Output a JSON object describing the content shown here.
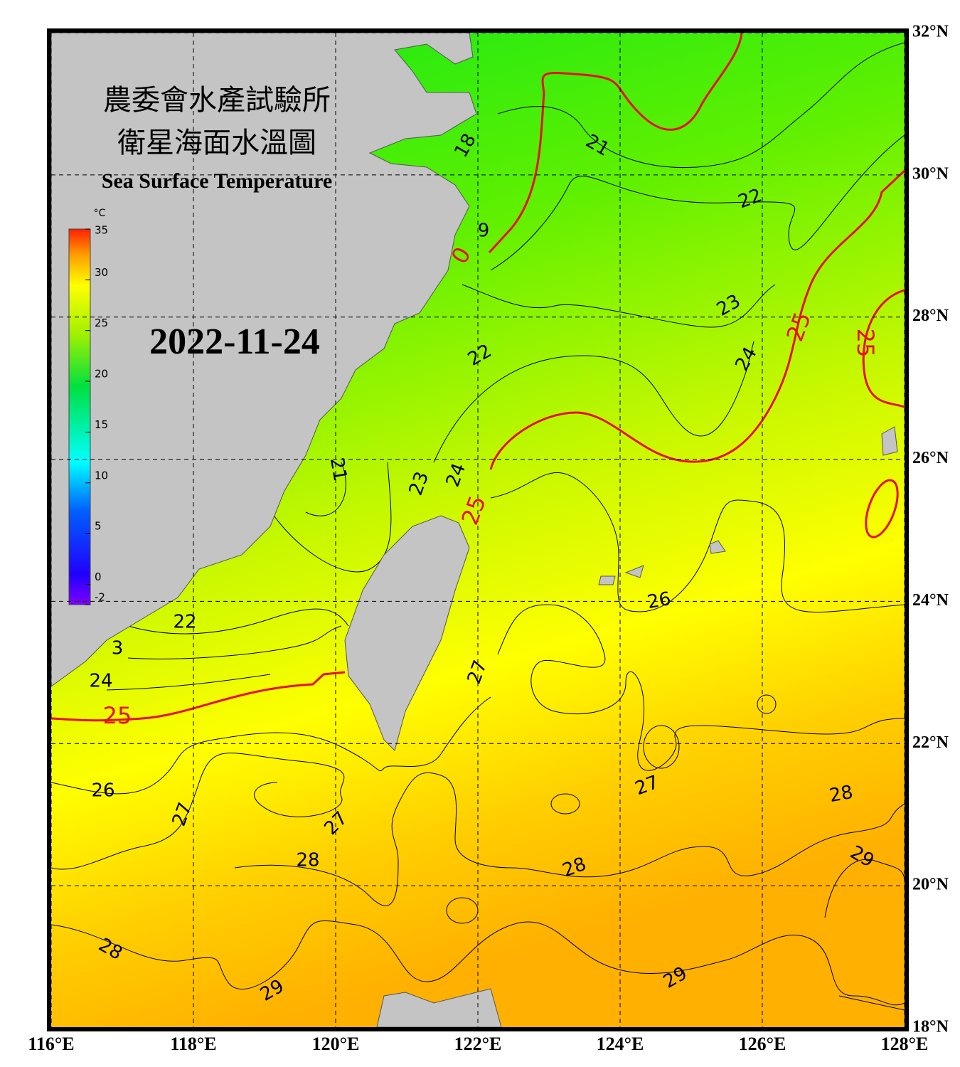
{
  "header": {
    "title_zh_1": "農委會水產試驗所",
    "title_zh_2": "衛星海面水溫圖",
    "title_en": "Sea Surface Temperature"
  },
  "date": "2022-11-24",
  "colorbar": {
    "unit": "°C",
    "range": [
      -2,
      35
    ],
    "ticks": [
      35,
      30,
      25,
      20,
      15,
      10,
      5,
      0,
      -2
    ]
  },
  "map": {
    "xlim": [
      116,
      128
    ],
    "ylim": [
      18,
      32
    ],
    "xticks": [
      {
        "value": 116,
        "label": "116°E"
      },
      {
        "value": 118,
        "label": "118°E"
      },
      {
        "value": 120,
        "label": "120°E"
      },
      {
        "value": 122,
        "label": "122°E"
      },
      {
        "value": 124,
        "label": "124°E"
      },
      {
        "value": 126,
        "label": "126°E"
      },
      {
        "value": 128,
        "label": "128°E"
      }
    ],
    "yticks": [
      {
        "value": 18,
        "label": "18°N"
      },
      {
        "value": 20,
        "label": "20°N"
      },
      {
        "value": 22,
        "label": "22°N"
      },
      {
        "value": 24,
        "label": "24°N"
      },
      {
        "value": 26,
        "label": "26°N"
      },
      {
        "value": 28,
        "label": "28°N"
      },
      {
        "value": 30,
        "label": "30°N"
      },
      {
        "value": 32,
        "label": "32°N"
      }
    ]
  },
  "contour_labels": [
    "18",
    "21",
    "22",
    "9",
    "0",
    "23",
    "25",
    "25",
    "22",
    "24",
    "21",
    "23",
    "24",
    "25",
    "26",
    "22",
    "3",
    "27",
    "24",
    "25",
    "27",
    "28",
    "26",
    "27",
    "27",
    "28",
    "29",
    "28",
    "28",
    "29",
    "29"
  ]
}
